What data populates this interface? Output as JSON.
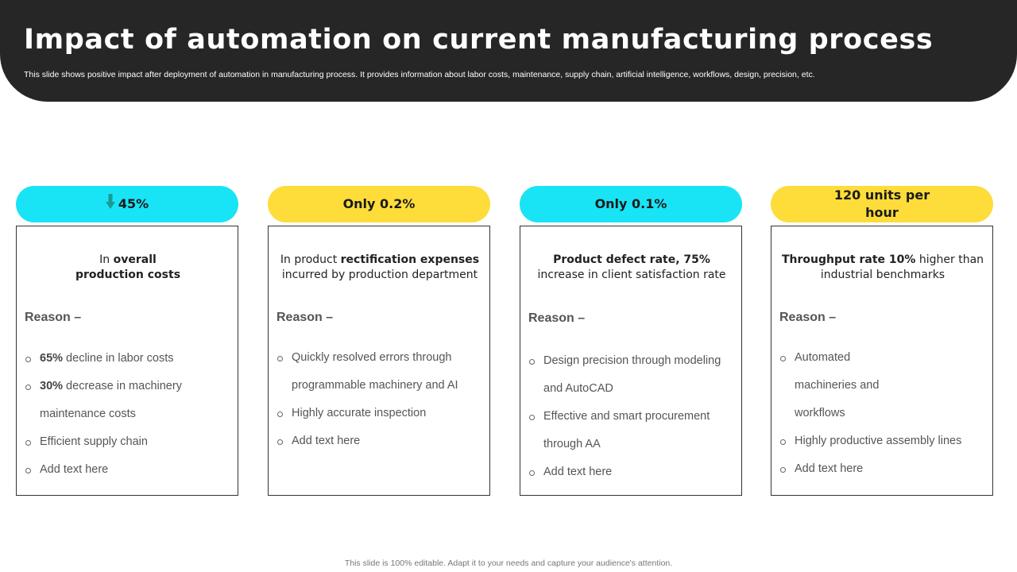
{
  "header": {
    "title": "Impact of automation on current manufacturing process",
    "subtitle": "This slide shows positive impact after deployment of automation in manufacturing process. It provides information about labor costs, maintenance, supply chain, artificial intelligence, workflows, design, precision, etc."
  },
  "cards": [
    {
      "metric": "45%",
      "metric_icon": "down-arrow-icon",
      "color": "#19e4f5",
      "headline": {
        "pre": "In ",
        "bold": "overall production costs",
        "post": ""
      },
      "reason_label": "Reason –",
      "bullets": [
        {
          "bold": "65%",
          "text": " decline in labor costs"
        },
        {
          "bold": "30%",
          "text": " decrease in machinery maintenance costs"
        },
        {
          "bold": "",
          "text": "Efficient supply chain"
        },
        {
          "bold": "",
          "text": "Add text here"
        }
      ]
    },
    {
      "metric": "Only 0.2%",
      "color": "#fedc3a",
      "headline": {
        "pre": "In product ",
        "bold": "rectification expenses",
        "post": " incurred by production department"
      },
      "reason_label": "Reason –",
      "bullets": [
        {
          "bold": "",
          "text": "Quickly resolved errors through programmable machinery and AI"
        },
        {
          "bold": "",
          "text": "Highly accurate inspection"
        },
        {
          "bold": "",
          "text": "Add text here"
        }
      ]
    },
    {
      "metric": "Only 0.1%",
      "color": "#19e4f5",
      "headline": {
        "pre": "",
        "bold": "Product defect rate, 75%",
        "post": " increase in client satisfaction rate"
      },
      "reason_label": "Reason –",
      "bullets": [
        {
          "bold": "",
          "text": "Design precision through modeling and AutoCAD"
        },
        {
          "bold": "",
          "text": "Effective and smart procurement through AA"
        },
        {
          "bold": "",
          "text": "Add text here"
        }
      ]
    },
    {
      "metric": "120 units per hour",
      "color": "#fedc3a",
      "headline": {
        "pre": "",
        "bold": "Throughput rate 10%",
        "post": " higher than industrial benchmarks"
      },
      "reason_label": "Reason –",
      "bullets": [
        {
          "bold": "",
          "text": "Automated machineries and workflows"
        },
        {
          "bold": "",
          "text": "Highly productive assembly lines"
        },
        {
          "bold": "",
          "text": "Add text here"
        }
      ]
    }
  ],
  "footer": {
    "text": "This slide is 100% editable. Adapt it to your needs and capture your audience's attention."
  }
}
